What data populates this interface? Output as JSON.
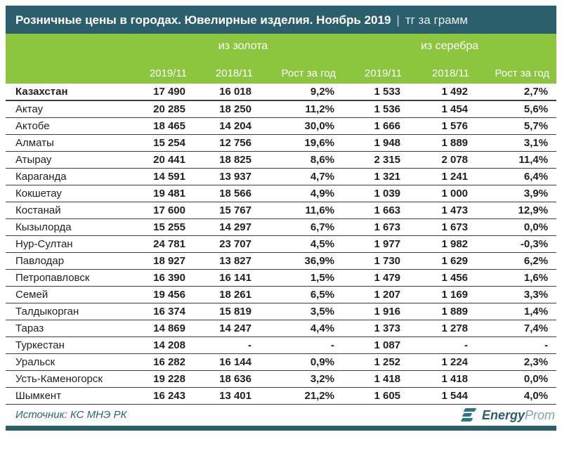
{
  "title": {
    "main": "Розничные цены в городах. Ювелирные изделия. Ноябрь 2019",
    "separator": "|",
    "unit": "тг за грамм"
  },
  "chart_data": {
    "type": "table",
    "title": "Розничные цены в городах. Ювелирные изделия. Ноябрь 2019 (тг за грамм)",
    "column_groups": [
      {
        "label": "из золота",
        "span": 3
      },
      {
        "label": "из серебра",
        "span": 3
      }
    ],
    "columns": [
      "2019/11",
      "2018/11",
      "Рост за год",
      "2019/11",
      "2018/11",
      "Рост за год"
    ],
    "rows": [
      {
        "name": "Казахстан",
        "total": true,
        "values": [
          "17 490",
          "16 018",
          "9,2%",
          "1 533",
          "1 492",
          "2,7%"
        ]
      },
      {
        "name": "Актау",
        "total": false,
        "values": [
          "20 285",
          "18 250",
          "11,2%",
          "1 536",
          "1 454",
          "5,6%"
        ]
      },
      {
        "name": "Актобе",
        "total": false,
        "values": [
          "18 465",
          "14 204",
          "30,0%",
          "1 666",
          "1 576",
          "5,7%"
        ]
      },
      {
        "name": "Алматы",
        "total": false,
        "values": [
          "15 254",
          "12 756",
          "19,6%",
          "1 948",
          "1 889",
          "3,1%"
        ]
      },
      {
        "name": "Атырау",
        "total": false,
        "values": [
          "20 441",
          "18 825",
          "8,6%",
          "2 315",
          "2 078",
          "11,4%"
        ]
      },
      {
        "name": "Караганда",
        "total": false,
        "values": [
          "14 591",
          "13 937",
          "4,7%",
          "1 321",
          "1 241",
          "6,4%"
        ]
      },
      {
        "name": "Кокшетау",
        "total": false,
        "values": [
          "19 481",
          "18 566",
          "4,9%",
          "1 039",
          "1 000",
          "3,9%"
        ]
      },
      {
        "name": "Костанай",
        "total": false,
        "values": [
          "17 600",
          "15 767",
          "11,6%",
          "1 663",
          "1 473",
          "12,9%"
        ]
      },
      {
        "name": "Кызылорда",
        "total": false,
        "values": [
          "15 255",
          "14 297",
          "6,7%",
          "1 673",
          "1 673",
          "0,0%"
        ]
      },
      {
        "name": "Нур-Султан",
        "total": false,
        "values": [
          "24 781",
          "23 707",
          "4,5%",
          "1 977",
          "1 982",
          "-0,3%"
        ]
      },
      {
        "name": "Павлодар",
        "total": false,
        "values": [
          "18 927",
          "13 827",
          "36,9%",
          "1 730",
          "1 629",
          "6,2%"
        ]
      },
      {
        "name": "Петропавловск",
        "total": false,
        "values": [
          "16 390",
          "16 141",
          "1,5%",
          "1 479",
          "1 456",
          "1,6%"
        ]
      },
      {
        "name": "Семей",
        "total": false,
        "values": [
          "19 456",
          "18 261",
          "6,5%",
          "1 207",
          "1 169",
          "3,3%"
        ]
      },
      {
        "name": "Талдыкорган",
        "total": false,
        "values": [
          "16 374",
          "15 819",
          "3,5%",
          "1 916",
          "1 889",
          "1,4%"
        ]
      },
      {
        "name": "Тараз",
        "total": false,
        "values": [
          "14 869",
          "14 247",
          "4,4%",
          "1 373",
          "1 278",
          "7,4%"
        ]
      },
      {
        "name": "Туркестан",
        "total": false,
        "values": [
          "14 208",
          "-",
          "-",
          "1 087",
          "-",
          "-"
        ]
      },
      {
        "name": "Уральск",
        "total": false,
        "values": [
          "16 282",
          "16 144",
          "0,9%",
          "1 252",
          "1 224",
          "2,3%"
        ]
      },
      {
        "name": "Усть-Каменогорск",
        "total": false,
        "values": [
          "19 228",
          "18 636",
          "3,2%",
          "1 418",
          "1 418",
          "0,0%"
        ]
      },
      {
        "name": "Шымкент",
        "total": false,
        "values": [
          "16 243",
          "13 401",
          "21,2%",
          "1 605",
          "1 544",
          "4,0%"
        ]
      }
    ]
  },
  "footer": {
    "source": "Источник: КС МНЭ РК",
    "logo": {
      "bold": "Energy",
      "light": "Prom"
    }
  },
  "colors": {
    "teal": "#2B5F6C",
    "green": "#8CC63F",
    "line": "#3d3d3d",
    "text": "#1f1f1f",
    "source": "#2D6470",
    "logo-light": "#7FA6B1"
  }
}
